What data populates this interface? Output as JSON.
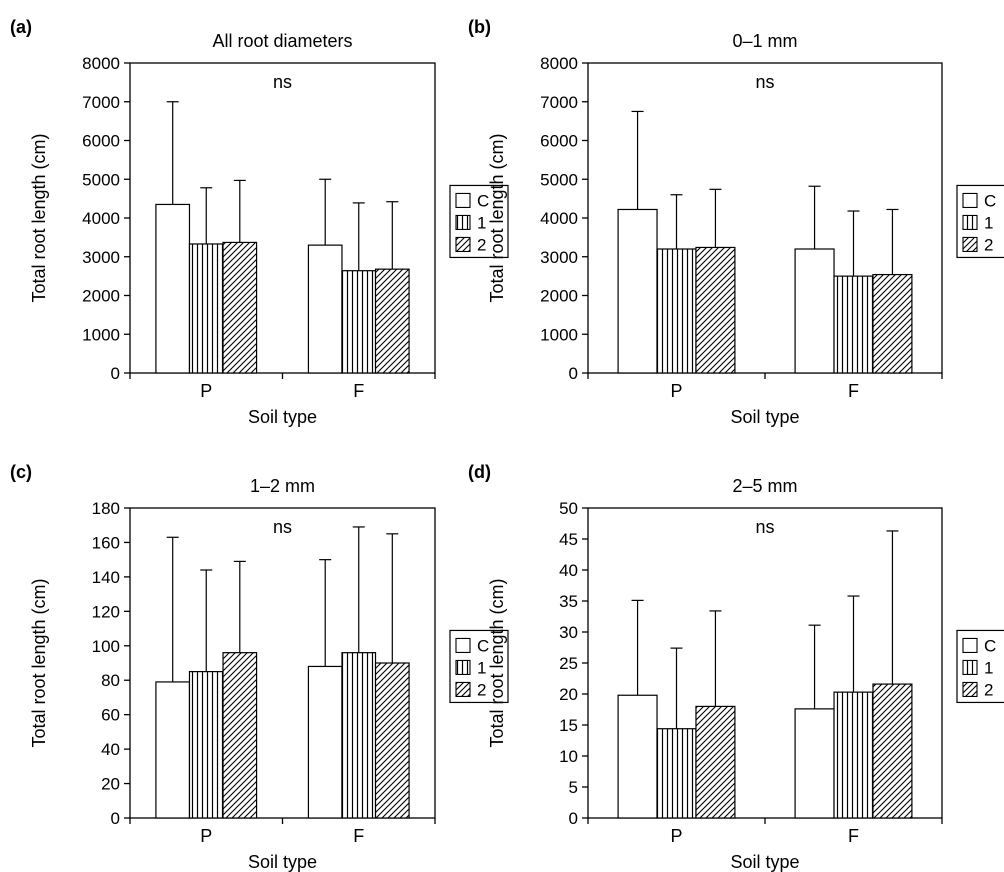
{
  "legend_items": [
    {
      "key": "C",
      "pattern": "blank"
    },
    {
      "key": "1",
      "pattern": "vertical"
    },
    {
      "key": "2",
      "pattern": "diagonal"
    }
  ],
  "colors": {
    "ink": "#000000",
    "fill": "#ffffff"
  },
  "chart_data": [
    {
      "type": "bar",
      "panel_label": "(a)",
      "title": "All root diameters",
      "annotation": "ns",
      "xlabel": "Soil type",
      "ylabel": "Total root length (cm)",
      "categories": [
        "P",
        "F"
      ],
      "ylim": [
        0,
        8000
      ],
      "yticks": [
        0,
        1000,
        2000,
        3000,
        4000,
        5000,
        6000,
        7000,
        8000
      ],
      "error_bars": "upper",
      "legend_position": "right",
      "series": [
        {
          "name": "C",
          "values": [
            4350,
            3300
          ],
          "errors": [
            2650,
            1700
          ]
        },
        {
          "name": "1",
          "values": [
            3330,
            2640
          ],
          "errors": [
            1450,
            1750
          ]
        },
        {
          "name": "2",
          "values": [
            3370,
            2680
          ],
          "errors": [
            1600,
            1740
          ]
        }
      ]
    },
    {
      "type": "bar",
      "panel_label": "(b)",
      "title": "0–1 mm",
      "annotation": "ns",
      "xlabel": "Soil type",
      "ylabel": "Total root length (cm)",
      "categories": [
        "P",
        "F"
      ],
      "ylim": [
        0,
        8000
      ],
      "yticks": [
        0,
        1000,
        2000,
        3000,
        4000,
        5000,
        6000,
        7000,
        8000
      ],
      "error_bars": "upper",
      "legend_position": "right",
      "series": [
        {
          "name": "C",
          "values": [
            4220,
            3200
          ],
          "errors": [
            2530,
            1620
          ]
        },
        {
          "name": "1",
          "values": [
            3200,
            2500
          ],
          "errors": [
            1400,
            1680
          ]
        },
        {
          "name": "2",
          "values": [
            3240,
            2540
          ],
          "errors": [
            1500,
            1680
          ]
        }
      ]
    },
    {
      "type": "bar",
      "panel_label": "(c)",
      "title": "1–2 mm",
      "annotation": "ns",
      "xlabel": "Soil type",
      "ylabel": "Total root length (cm)",
      "categories": [
        "P",
        "F"
      ],
      "ylim": [
        0,
        180
      ],
      "yticks": [
        0,
        20,
        40,
        60,
        80,
        100,
        120,
        140,
        160,
        180
      ],
      "error_bars": "upper",
      "legend_position": "right",
      "series": [
        {
          "name": "C",
          "values": [
            79,
            88
          ],
          "errors": [
            84,
            62
          ]
        },
        {
          "name": "1",
          "values": [
            85,
            96
          ],
          "errors": [
            59,
            73
          ]
        },
        {
          "name": "2",
          "values": [
            96,
            90
          ],
          "errors": [
            53,
            75
          ]
        }
      ]
    },
    {
      "type": "bar",
      "panel_label": "(d)",
      "title": "2–5 mm",
      "annotation": "ns",
      "xlabel": "Soil type",
      "ylabel": "Total root length (cm)",
      "categories": [
        "P",
        "F"
      ],
      "ylim": [
        0,
        50
      ],
      "yticks": [
        0,
        5,
        10,
        15,
        20,
        25,
        30,
        35,
        40,
        45,
        50
      ],
      "error_bars": "upper",
      "legend_position": "right",
      "series": [
        {
          "name": "C",
          "values": [
            19.8,
            17.6
          ],
          "errors": [
            15.3,
            13.5
          ]
        },
        {
          "name": "1",
          "values": [
            14.4,
            20.3
          ],
          "errors": [
            13.0,
            15.5
          ]
        },
        {
          "name": "2",
          "values": [
            18.0,
            21.6
          ],
          "errors": [
            15.4,
            24.7
          ]
        }
      ]
    }
  ]
}
